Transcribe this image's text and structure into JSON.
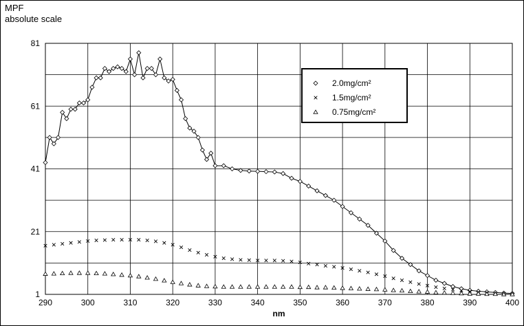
{
  "chart_data": {
    "type": "line",
    "ylabel_line1": "MPF",
    "ylabel_line2": "absolute scale",
    "xlabel": "nm",
    "xlim": [
      290,
      400
    ],
    "ylim": [
      1,
      81
    ],
    "x_ticks": [
      290,
      300,
      310,
      320,
      330,
      340,
      350,
      360,
      370,
      380,
      390,
      400
    ],
    "y_ticks": [
      1,
      21,
      41,
      61,
      81
    ],
    "grid": true,
    "legend_position": "top-right",
    "series": [
      {
        "name": "2.0mg/cm²",
        "marker": "diamond",
        "line": true,
        "x": [
          290,
          291,
          292,
          293,
          294,
          295,
          296,
          297,
          298,
          299,
          300,
          301,
          302,
          303,
          304,
          305,
          306,
          307,
          308,
          309,
          310,
          311,
          312,
          313,
          314,
          315,
          316,
          317,
          318,
          319,
          320,
          321,
          322,
          323,
          324,
          325,
          326,
          327,
          328,
          329,
          330,
          332,
          334,
          336,
          338,
          340,
          342,
          344,
          346,
          348,
          350,
          352,
          354,
          356,
          358,
          360,
          362,
          364,
          366,
          368,
          370,
          372,
          374,
          376,
          378,
          380,
          382,
          384,
          386,
          388,
          390,
          392,
          394,
          396,
          398,
          400
        ],
        "y": [
          43,
          51,
          49,
          51,
          59,
          57,
          60,
          60,
          62,
          62,
          63,
          67,
          70,
          70,
          73,
          72,
          73,
          73.5,
          73,
          72,
          76,
          71,
          78,
          70,
          73,
          73,
          71,
          76,
          70,
          69,
          69.5,
          66,
          63,
          57,
          54,
          53,
          51,
          47,
          44,
          46,
          42,
          42,
          41,
          40.5,
          40.3,
          40.2,
          40.1,
          40,
          39.5,
          38,
          37,
          35.5,
          34,
          32.5,
          31,
          29,
          27,
          25,
          23,
          20.5,
          18,
          15,
          12.5,
          10.5,
          8.5,
          7,
          5.5,
          4.5,
          3.5,
          2.8,
          2.3,
          2,
          1.8,
          1.6,
          1.4,
          1.3
        ]
      },
      {
        "name": "1.5mg/cm²",
        "marker": "cross",
        "line": false,
        "x": [
          290,
          292,
          294,
          296,
          298,
          300,
          302,
          304,
          306,
          308,
          310,
          312,
          314,
          316,
          318,
          320,
          322,
          324,
          326,
          328,
          330,
          332,
          334,
          336,
          338,
          340,
          342,
          344,
          346,
          348,
          350,
          352,
          354,
          356,
          358,
          360,
          362,
          364,
          366,
          368,
          370,
          372,
          374,
          376,
          378,
          380,
          382,
          384,
          386,
          388,
          390,
          392,
          394,
          396,
          398,
          400
        ],
        "y": [
          16.5,
          16.8,
          17.1,
          17.4,
          17.7,
          18,
          18.2,
          18.3,
          18.4,
          18.4,
          18.4,
          18.4,
          18.2,
          17.9,
          17.4,
          16.8,
          16,
          15.1,
          14.3,
          13.6,
          13,
          12.5,
          12.2,
          12,
          11.9,
          11.8,
          11.8,
          11.8,
          11.7,
          11.5,
          11.2,
          10.8,
          10.5,
          10.1,
          9.8,
          9.4,
          9,
          8.5,
          8,
          7.4,
          6.8,
          6.1,
          5.5,
          4.9,
          4.3,
          3.8,
          3.3,
          2.9,
          2.5,
          2.2,
          1.9,
          1.7,
          1.5,
          1.3,
          1.2,
          1.1
        ]
      },
      {
        "name": "0.75mg/cm²",
        "marker": "triangle",
        "line": false,
        "x": [
          290,
          292,
          294,
          296,
          298,
          300,
          302,
          304,
          306,
          308,
          310,
          312,
          314,
          316,
          318,
          320,
          322,
          324,
          326,
          328,
          330,
          332,
          334,
          336,
          338,
          340,
          342,
          344,
          346,
          348,
          350,
          352,
          354,
          356,
          358,
          360,
          362,
          364,
          366,
          368,
          370,
          372,
          374,
          376,
          378,
          380,
          382,
          384,
          386,
          388,
          390,
          392,
          394,
          396,
          398,
          400
        ],
        "y": [
          7.5,
          7.6,
          7.7,
          7.8,
          7.8,
          7.8,
          7.7,
          7.6,
          7.4,
          7.2,
          7,
          6.7,
          6.3,
          5.9,
          5.4,
          4.9,
          4.5,
          4.1,
          3.8,
          3.6,
          3.5,
          3.4,
          3.4,
          3.4,
          3.4,
          3.4,
          3.4,
          3.4,
          3.4,
          3.4,
          3.3,
          3.3,
          3.2,
          3.2,
          3.1,
          3,
          2.9,
          2.8,
          2.7,
          2.6,
          2.5,
          2.3,
          2.2,
          2,
          1.9,
          1.8,
          1.6,
          1.5,
          1.4,
          1.3,
          1.2,
          1.2,
          1.1,
          1.1,
          1,
          1
        ]
      }
    ]
  }
}
